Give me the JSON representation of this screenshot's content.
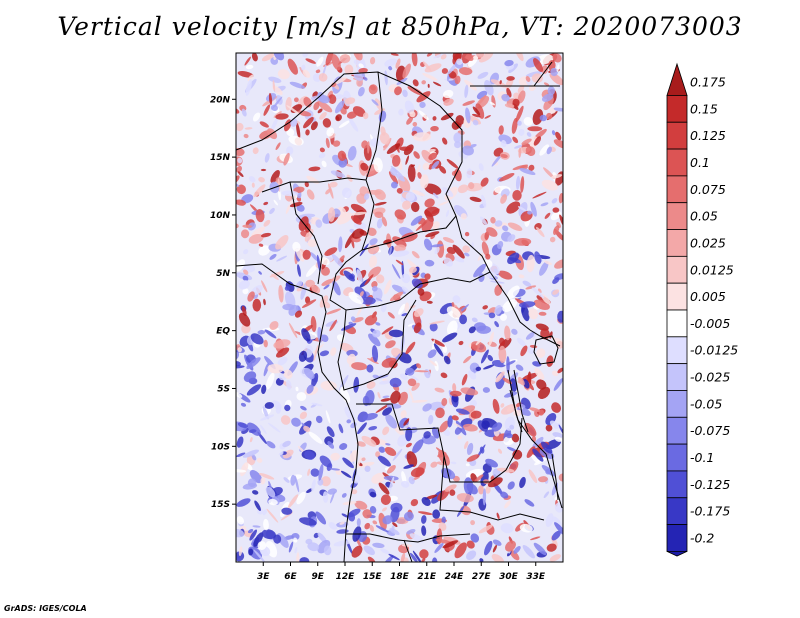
{
  "title": "Vertical velocity [m/s] at 850hPa, VT: 2020073003",
  "credit": "GrADS: IGES/COLA",
  "map": {
    "lon_range": [
      0,
      36
    ],
    "lat_range": [
      -20,
      24
    ],
    "x_ticks": [
      {
        "value": 3,
        "label": "3E"
      },
      {
        "value": 6,
        "label": "6E"
      },
      {
        "value": 9,
        "label": "9E"
      },
      {
        "value": 12,
        "label": "12E"
      },
      {
        "value": 15,
        "label": "15E"
      },
      {
        "value": 18,
        "label": "18E"
      },
      {
        "value": 21,
        "label": "21E"
      },
      {
        "value": 24,
        "label": "24E"
      },
      {
        "value": 27,
        "label": "27E"
      },
      {
        "value": 30,
        "label": "30E"
      },
      {
        "value": 33,
        "label": "33E"
      }
    ],
    "y_ticks": [
      {
        "value": 20,
        "label": "20N"
      },
      {
        "value": 15,
        "label": "15N"
      },
      {
        "value": 10,
        "label": "10N"
      },
      {
        "value": 5,
        "label": "5N"
      },
      {
        "value": 0,
        "label": "EQ"
      },
      {
        "value": -5,
        "label": "5S"
      },
      {
        "value": -10,
        "label": "10S"
      },
      {
        "value": -15,
        "label": "15S"
      }
    ]
  },
  "colorbar": {
    "levels": [
      {
        "label": "0.175",
        "color": "#b41c1c"
      },
      {
        "label": "0.15",
        "color": "#c42a2a"
      },
      {
        "label": "0.125",
        "color": "#d23e3e"
      },
      {
        "label": "0.1",
        "color": "#dc5454"
      },
      {
        "label": "0.075",
        "color": "#e56e6e"
      },
      {
        "label": "0.05",
        "color": "#ec8a8a"
      },
      {
        "label": "0.025",
        "color": "#f3a8a8"
      },
      {
        "label": "0.0125",
        "color": "#f8c6c6"
      },
      {
        "label": "0.005",
        "color": "#fce2e2"
      },
      {
        "label": "-0.005",
        "color": "#ffffff"
      },
      {
        "label": "-0.0125",
        "color": "#dedeff"
      },
      {
        "label": "-0.025",
        "color": "#c4c4fb"
      },
      {
        "label": "-0.05",
        "color": "#a4a4f4"
      },
      {
        "label": "-0.075",
        "color": "#8686ec"
      },
      {
        "label": "-0.1",
        "color": "#6a6ae2"
      },
      {
        "label": "-0.125",
        "color": "#5050d6"
      },
      {
        "label": "-0.175",
        "color": "#3838c6"
      },
      {
        "label": "-0.2",
        "color": "#2424b4"
      }
    ],
    "top_color": "#a81c1c",
    "bottom_color": "#1c1ca8"
  }
}
